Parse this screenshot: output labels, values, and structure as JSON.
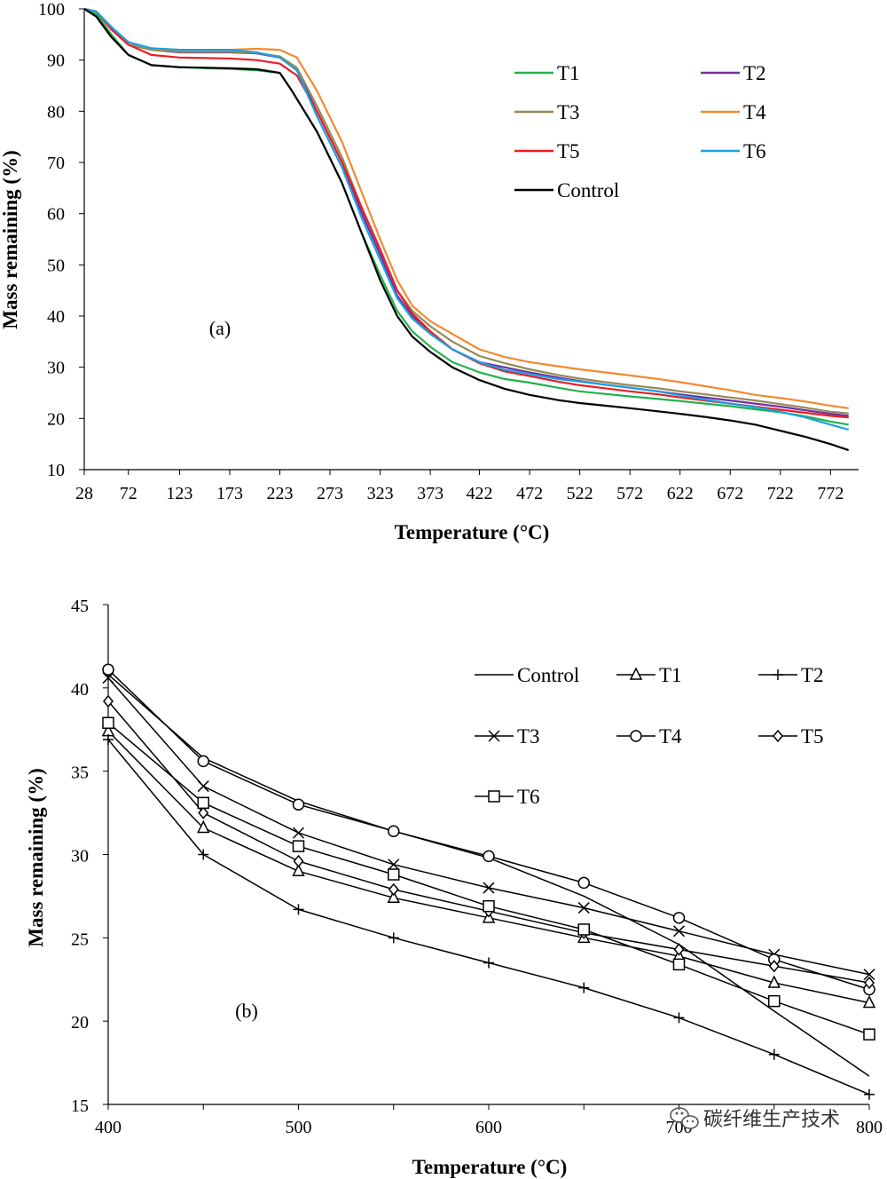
{
  "chart_data": [
    {
      "panel_label": "(a)",
      "type": "line",
      "xlabel": "Temperature (°C)",
      "ylabel": "Mass remaining (%)",
      "xlim": [
        28,
        800
      ],
      "ylim": [
        10,
        100
      ],
      "y_ticks": [
        10,
        20,
        30,
        40,
        50,
        60,
        70,
        80,
        90,
        100
      ],
      "x_ticks": [
        28,
        72,
        123,
        173,
        223,
        273,
        323,
        373,
        422,
        472,
        522,
        572,
        622,
        672,
        722,
        772
      ],
      "series": [
        {
          "name": "T1",
          "color": "#22b14c",
          "x": [
            28,
            40,
            55,
            72,
            95,
            123,
            150,
            173,
            200,
            223,
            235,
            260,
            285,
            305,
            323,
            340,
            355,
            373,
            395,
            422,
            447,
            472,
            500,
            522,
            547,
            572,
            600,
            622,
            647,
            672,
            697,
            722,
            747,
            772,
            790
          ],
          "y": [
            100,
            99,
            95,
            91,
            89,
            88.6,
            88.4,
            88.3,
            88,
            87.5,
            84,
            76,
            66,
            56,
            48,
            41,
            37,
            34,
            31,
            29,
            27.7,
            27,
            26,
            25.3,
            24.8,
            24.3,
            23.8,
            23.4,
            22.9,
            22.4,
            21.8,
            21.2,
            20.4,
            19.4,
            18.8
          ]
        },
        {
          "name": "T2",
          "color": "#7030a0",
          "x": [
            28,
            40,
            55,
            72,
            95,
            123,
            150,
            173,
            200,
            223,
            240,
            260,
            285,
            305,
            323,
            340,
            355,
            373,
            395,
            422,
            447,
            472,
            500,
            522,
            547,
            572,
            600,
            622,
            647,
            672,
            697,
            722,
            747,
            772,
            790
          ],
          "y": [
            100,
            99.5,
            96,
            93,
            92,
            91.5,
            91.5,
            91.5,
            91.3,
            90.5,
            88,
            80,
            70,
            60,
            52,
            44,
            40,
            37,
            33.5,
            31,
            30,
            29,
            28,
            27.3,
            26.6,
            26,
            25.3,
            24.7,
            24.1,
            23.5,
            22.9,
            22.3,
            21.6,
            20.9,
            20.5
          ]
        },
        {
          "name": "T3",
          "color": "#948a54",
          "x": [
            28,
            40,
            55,
            72,
            95,
            123,
            150,
            173,
            200,
            223,
            240,
            260,
            285,
            305,
            323,
            340,
            355,
            373,
            395,
            422,
            447,
            472,
            500,
            522,
            547,
            572,
            600,
            622,
            647,
            672,
            697,
            722,
            747,
            772,
            790
          ],
          "y": [
            100,
            99.5,
            96,
            93,
            92,
            91.6,
            91.6,
            91.6,
            91.4,
            90.7,
            88.5,
            81,
            71,
            61,
            53,
            45,
            41,
            38,
            35,
            32.2,
            30.8,
            29.6,
            28.5,
            27.8,
            27.1,
            26.5,
            25.9,
            25.3,
            24.7,
            24.1,
            23.5,
            22.8,
            22.1,
            21.3,
            21
          ]
        },
        {
          "name": "T4",
          "color": "#f28a30",
          "x": [
            28,
            40,
            55,
            72,
            95,
            123,
            150,
            173,
            200,
            223,
            240,
            260,
            285,
            305,
            323,
            340,
            355,
            373,
            395,
            422,
            447,
            472,
            500,
            522,
            547,
            572,
            600,
            622,
            647,
            672,
            697,
            722,
            747,
            772,
            790
          ],
          "y": [
            100,
            99.5,
            96,
            93.5,
            92.2,
            92,
            92,
            92,
            92.2,
            92,
            90.5,
            84,
            74,
            64,
            55,
            47,
            42,
            39,
            36.5,
            33.5,
            32,
            31,
            30.2,
            29.6,
            29,
            28.4,
            27.7,
            27.1,
            26.3,
            25.5,
            24.6,
            24,
            23.3,
            22.5,
            22
          ]
        },
        {
          "name": "T5",
          "color": "#ed1c24",
          "x": [
            28,
            40,
            55,
            72,
            95,
            123,
            150,
            173,
            200,
            223,
            240,
            260,
            285,
            305,
            323,
            340,
            355,
            373,
            395,
            422,
            447,
            472,
            500,
            522,
            547,
            572,
            600,
            622,
            647,
            672,
            697,
            722,
            747,
            772,
            790
          ],
          "y": [
            100,
            99.5,
            96,
            93,
            91,
            90.5,
            90.4,
            90.3,
            90,
            89.3,
            87,
            80,
            70,
            61,
            53,
            45,
            40.5,
            37,
            33.5,
            30.8,
            29.2,
            28.3,
            27.2,
            26.5,
            25.9,
            25.3,
            24.7,
            24.1,
            23.5,
            22.9,
            22.3,
            21.7,
            21.1,
            20.5,
            20.2
          ]
        },
        {
          "name": "T6",
          "color": "#1ba1e2",
          "x": [
            28,
            40,
            55,
            72,
            95,
            123,
            150,
            173,
            200,
            223,
            240,
            260,
            285,
            305,
            323,
            340,
            355,
            373,
            395,
            422,
            447,
            472,
            500,
            522,
            547,
            572,
            600,
            622,
            647,
            672,
            697,
            722,
            747,
            772,
            790
          ],
          "y": [
            100,
            99.5,
            96.5,
            93.5,
            92.3,
            92,
            92,
            92,
            91.5,
            90.5,
            88,
            79,
            69,
            59,
            51,
            43.5,
            39.5,
            36.5,
            33.5,
            31,
            29.5,
            28.7,
            27.7,
            27.2,
            26.6,
            26,
            25.3,
            24.5,
            23.7,
            22.9,
            22.2,
            21.3,
            20.2,
            18.8,
            17.8
          ]
        },
        {
          "name": "Control",
          "color": "#000000",
          "x": [
            28,
            40,
            55,
            72,
            95,
            123,
            150,
            173,
            200,
            223,
            235,
            260,
            285,
            305,
            323,
            340,
            355,
            373,
            395,
            422,
            447,
            472,
            500,
            522,
            547,
            572,
            600,
            622,
            647,
            672,
            697,
            722,
            747,
            772,
            790
          ],
          "y": [
            100,
            98.5,
            94.5,
            91,
            89,
            88.6,
            88.5,
            88.4,
            88.2,
            87.5,
            84,
            76,
            66,
            56,
            47,
            40,
            36,
            33,
            30,
            27.5,
            25.8,
            24.6,
            23.6,
            23,
            22.5,
            22,
            21.4,
            20.9,
            20.3,
            19.6,
            18.8,
            17.6,
            16.4,
            15,
            13.8
          ]
        }
      ],
      "legend": {
        "position": "top-right",
        "entries": [
          "T1",
          "T2",
          "T3",
          "T4",
          "T5",
          "T6",
          "Control"
        ]
      }
    },
    {
      "panel_label": "(b)",
      "type": "line",
      "xlabel": "Temperature (°C)",
      "ylabel": "Mass remaining (%)",
      "xlim": [
        400,
        800
      ],
      "ylim": [
        15,
        45
      ],
      "y_ticks": [
        15,
        20,
        25,
        30,
        35,
        40,
        45
      ],
      "x_ticks": [
        400,
        500,
        600,
        700,
        800
      ],
      "x_tick_labels": [
        "400",
        "500",
        "600",
        "700",
        "800"
      ],
      "categories": [
        400,
        450,
        500,
        550,
        600,
        650,
        700,
        750,
        800
      ],
      "series": [
        {
          "name": "Control",
          "marker": "none",
          "values": [
            40.8,
            35.8,
            33.2,
            31.4,
            29.8,
            27.5,
            24.6,
            20.6,
            16.7
          ]
        },
        {
          "name": "T1",
          "marker": "triangle",
          "values": [
            37.4,
            31.6,
            29.0,
            27.4,
            26.2,
            25.0,
            23.9,
            22.3,
            21.1
          ]
        },
        {
          "name": "T2",
          "marker": "plus",
          "values": [
            36.9,
            30.0,
            26.7,
            25.0,
            23.5,
            22.0,
            20.2,
            18.0,
            15.6
          ]
        },
        {
          "name": "T3",
          "marker": "x",
          "values": [
            40.6,
            34.1,
            31.3,
            29.4,
            28.0,
            26.8,
            25.4,
            24.0,
            22.8
          ]
        },
        {
          "name": "T4",
          "marker": "circle",
          "values": [
            41.1,
            35.6,
            33.0,
            31.4,
            29.9,
            28.3,
            26.2,
            23.7,
            21.9
          ]
        },
        {
          "name": "T5",
          "marker": "diamond",
          "values": [
            39.2,
            32.5,
            29.6,
            27.9,
            26.6,
            25.3,
            24.3,
            23.3,
            22.3
          ]
        },
        {
          "name": "T6",
          "marker": "square",
          "values": [
            37.9,
            33.1,
            30.5,
            28.8,
            26.9,
            25.5,
            23.4,
            21.2,
            19.2
          ]
        }
      ],
      "legend": {
        "position": "top-right",
        "entries": [
          "Control",
          "T1",
          "T2",
          "T3",
          "T4",
          "T5",
          "T6"
        ]
      }
    }
  ],
  "watermark": {
    "text": "碳纤维生产技术",
    "icon": "wechat-icon"
  }
}
